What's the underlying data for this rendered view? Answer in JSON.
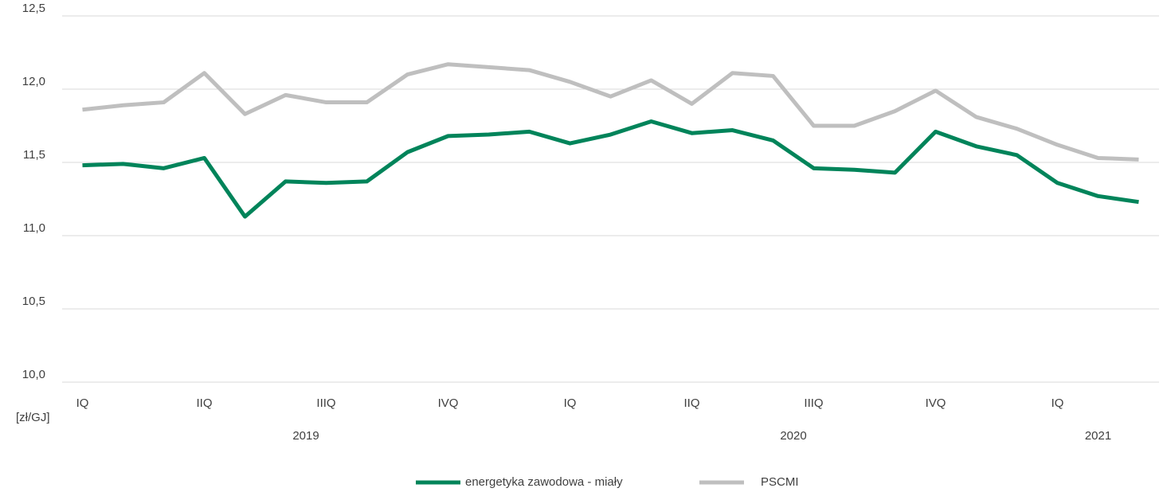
{
  "chart_data": {
    "type": "line",
    "y_unit": "[zł/GJ]",
    "categories": [
      "IQ",
      null,
      null,
      "IIQ",
      null,
      null,
      "IIIQ",
      null,
      null,
      "IVQ",
      null,
      null,
      "IQ",
      null,
      null,
      "IIQ",
      null,
      null,
      "IIIQ",
      null,
      null,
      "IVQ",
      null,
      null,
      "IQ",
      null,
      null
    ],
    "years": [
      "2019",
      "2020",
      "2021"
    ],
    "series": [
      {
        "name": "energetyka zawodowa - miały",
        "color": "#00845a",
        "values": [
          11.48,
          11.49,
          11.46,
          11.53,
          11.13,
          11.37,
          11.36,
          11.37,
          11.57,
          11.68,
          11.69,
          11.71,
          11.63,
          11.69,
          11.78,
          11.7,
          11.72,
          11.65,
          11.46,
          11.45,
          11.43,
          11.71,
          11.61,
          11.55,
          11.36,
          11.27,
          11.23
        ]
      },
      {
        "name": "PSCMI",
        "color": "#bfbfbf",
        "values": [
          11.86,
          11.89,
          11.91,
          12.11,
          11.83,
          11.96,
          11.91,
          11.91,
          12.1,
          12.17,
          12.15,
          12.13,
          12.05,
          11.95,
          12.06,
          11.9,
          12.11,
          12.09,
          11.75,
          11.75,
          11.85,
          11.99,
          11.81,
          11.73,
          11.62,
          11.53,
          11.52
        ]
      }
    ],
    "ylim": [
      10,
      12.5
    ],
    "yticks": [
      {
        "value": 10,
        "label": "10,0"
      },
      {
        "value": 10.5,
        "label": "10,5"
      },
      {
        "value": 11,
        "label": "11,0"
      },
      {
        "value": 11.5,
        "label": "11,5"
      },
      {
        "value": 12,
        "label": "12,0"
      },
      {
        "value": 12.5,
        "label": "12,5"
      }
    ],
    "grid": true,
    "legend": "bottom"
  }
}
